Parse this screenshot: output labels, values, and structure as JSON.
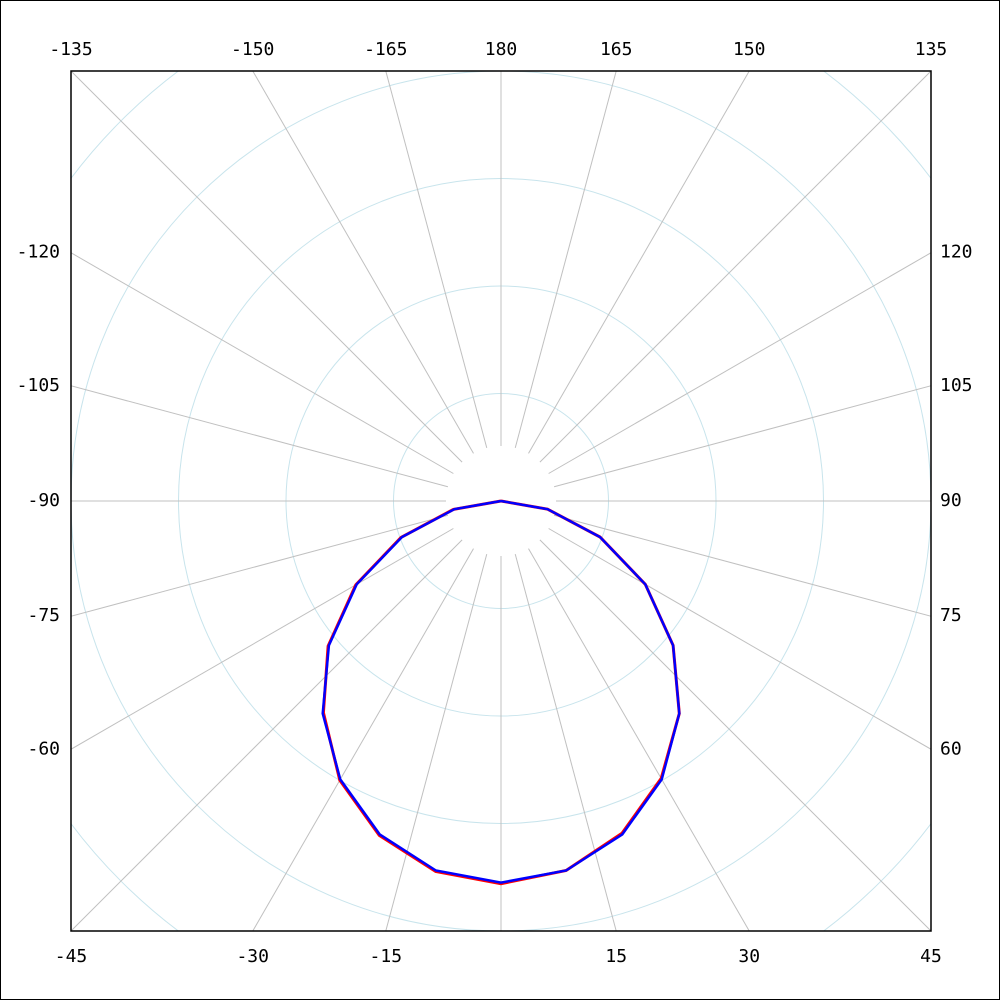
{
  "chart_data": {
    "type": "polar",
    "theta": [
      -90,
      -80,
      -70,
      -60,
      -50,
      -40,
      -30,
      -20,
      -10,
      0,
      10,
      20,
      30,
      40,
      50,
      60,
      70,
      80,
      90
    ],
    "series": [
      {
        "color": "#ff0000",
        "values": [
          0,
          0.45,
          0.99,
          1.56,
          2.1,
          2.57,
          3.0,
          3.31,
          3.5,
          3.56,
          3.49,
          3.29,
          2.98,
          2.58,
          2.09,
          1.55,
          0.98,
          0.44,
          0
        ]
      },
      {
        "color": "#0000ff",
        "values": [
          0,
          0.44,
          0.98,
          1.55,
          2.09,
          2.58,
          2.99,
          3.3,
          3.49,
          3.55,
          3.49,
          3.3,
          2.99,
          2.58,
          2.09,
          1.55,
          0.98,
          0.44,
          0
        ]
      }
    ],
    "rlim": [
      0,
      4
    ],
    "rticks": [
      1,
      2,
      3,
      4,
      5
    ],
    "thetaticks": [
      {
        "value": 0,
        "label": null
      },
      15,
      30,
      45,
      60,
      75,
      90,
      105,
      120,
      135,
      150,
      165,
      180,
      -165,
      -150,
      -135,
      -120,
      -105,
      -90,
      -75,
      -60,
      -45,
      -30,
      -15
    ],
    "grid": true
  }
}
